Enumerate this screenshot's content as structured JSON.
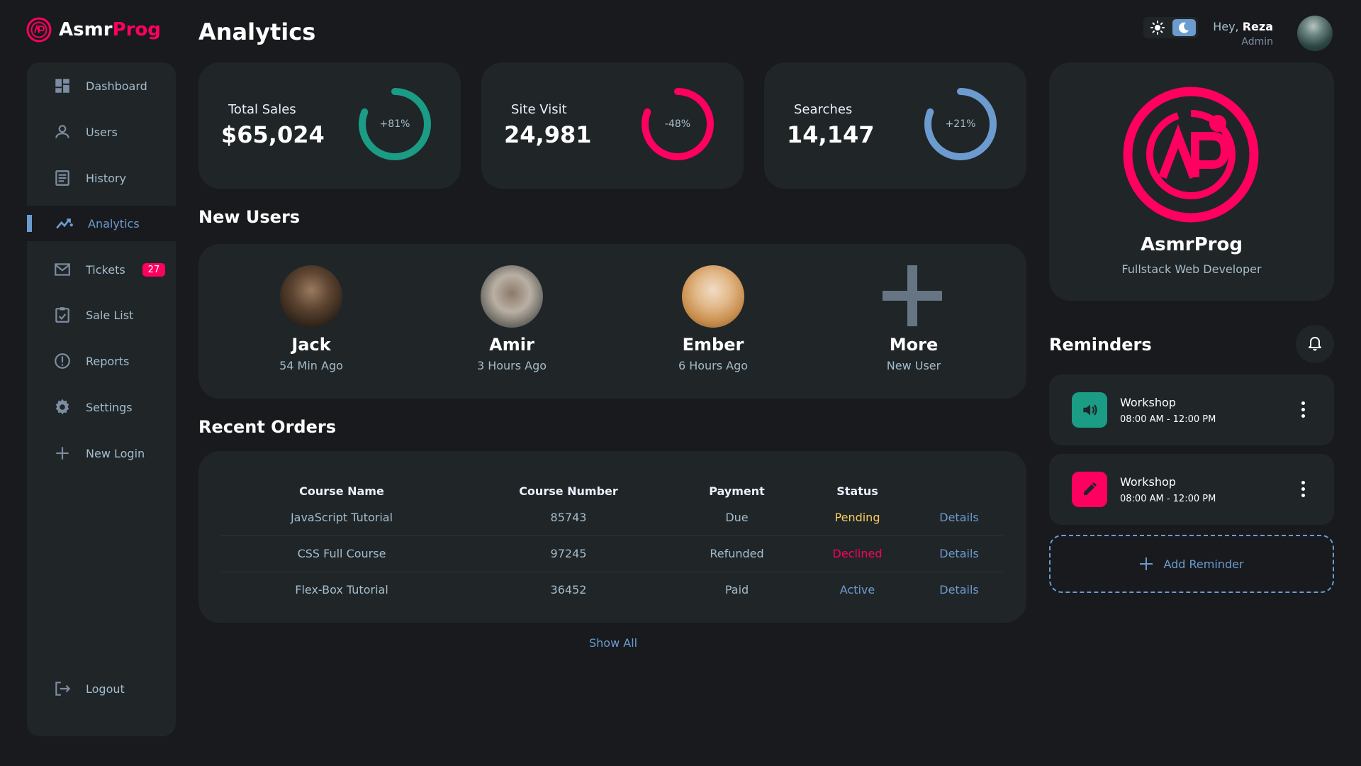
{
  "brand": {
    "name_main": "Asmr",
    "name_accent": "Prog",
    "accent_color": "#ff0060"
  },
  "page_title": "Analytics",
  "header": {
    "greeting": "Hey, ",
    "user_name": "Reza",
    "role": "Admin",
    "theme_light_icon": "sun-icon",
    "theme_dark_icon": "moon-icon"
  },
  "sidebar": {
    "items": [
      {
        "label": "Dashboard",
        "icon": "dashboard-icon"
      },
      {
        "label": "Users",
        "icon": "user-icon"
      },
      {
        "label": "History",
        "icon": "history-icon"
      },
      {
        "label": "Analytics",
        "icon": "analytics-icon",
        "active": true
      },
      {
        "label": "Tickets",
        "icon": "mail-icon",
        "badge": "27"
      },
      {
        "label": "Sale List",
        "icon": "clipboard-icon"
      },
      {
        "label": "Reports",
        "icon": "report-icon"
      },
      {
        "label": "Settings",
        "icon": "gear-icon"
      },
      {
        "label": "New Login",
        "icon": "plus-icon"
      },
      {
        "label": "Logout",
        "icon": "logout-icon"
      }
    ]
  },
  "stats": [
    {
      "label": "Total Sales",
      "value": "$65,024",
      "change": "+81%",
      "color": "#1b9c85"
    },
    {
      "label": "Site Visit",
      "value": "24,981",
      "change": "-48%",
      "color": "#ff0060"
    },
    {
      "label": "Searches",
      "value": "14,147",
      "change": "+21%",
      "color": "#6c9bcf"
    }
  ],
  "new_users": {
    "title": "New Users",
    "users": [
      {
        "name": "Jack",
        "time": "54 Min Ago"
      },
      {
        "name": "Amir",
        "time": "3 Hours Ago"
      },
      {
        "name": "Ember",
        "time": "6 Hours Ago"
      },
      {
        "name": "More",
        "time": "New User"
      }
    ]
  },
  "orders": {
    "title": "Recent Orders",
    "columns": [
      "Course Name",
      "Course Number",
      "Payment",
      "Status"
    ],
    "rows": [
      {
        "course": "JavaScript Tutorial",
        "number": "85743",
        "payment": "Due",
        "status": "Pending",
        "action": "Details"
      },
      {
        "course": "CSS Full Course",
        "number": "97245",
        "payment": "Refunded",
        "status": "Declined",
        "action": "Details"
      },
      {
        "course": "Flex-Box Tutorial",
        "number": "36452",
        "payment": "Paid",
        "status": "Active",
        "action": "Details"
      }
    ],
    "show_all": "Show All"
  },
  "profile_card": {
    "name": "AsmrProg",
    "role": "Fullstack Web Developer"
  },
  "reminders": {
    "title": "Reminders",
    "items": [
      {
        "title": "Workshop",
        "time": "08:00 AM - 12:00 PM",
        "icon": "volume-icon",
        "color": "#1b9c85"
      },
      {
        "title": "Workshop",
        "time": "08:00 AM - 12:00 PM",
        "icon": "edit-icon",
        "color": "#ff0060"
      }
    ],
    "add_label": "Add Reminder"
  }
}
